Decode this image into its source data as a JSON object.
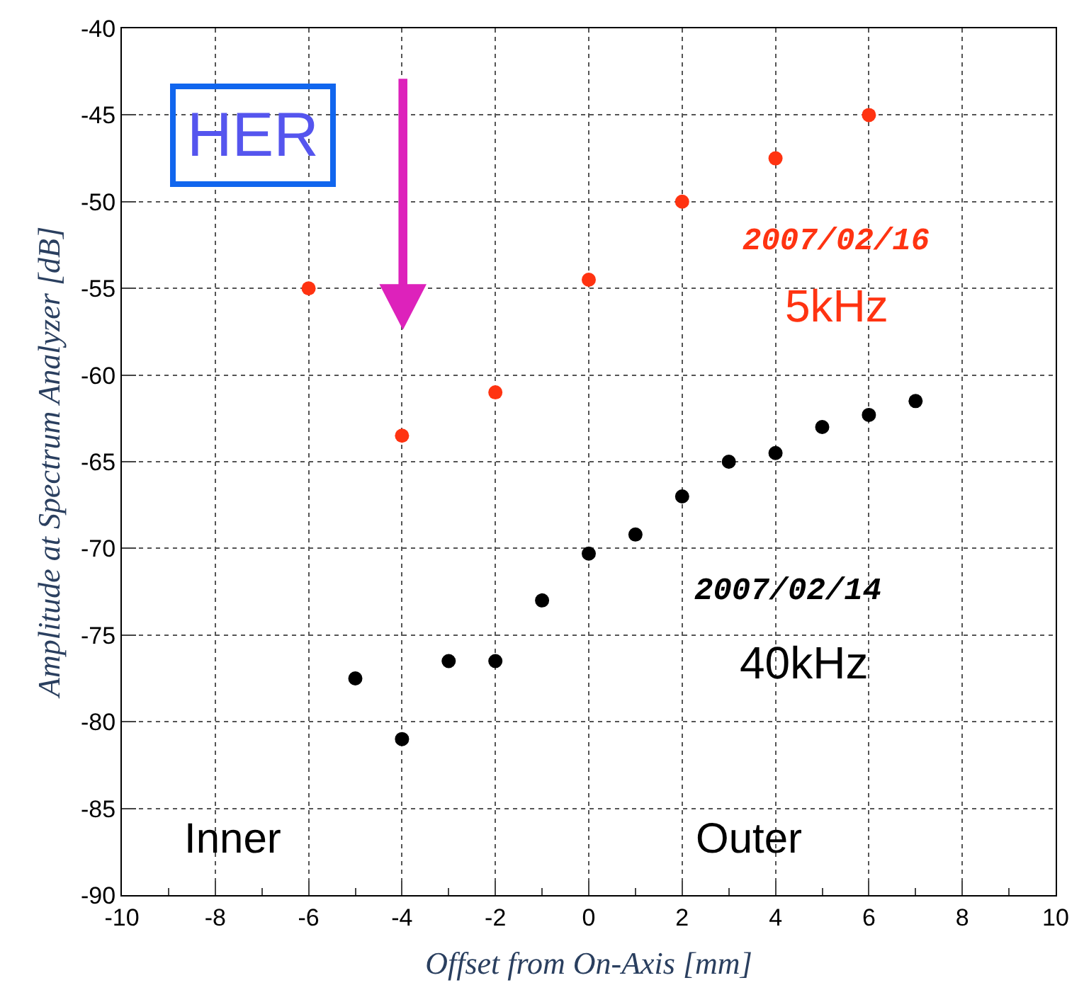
{
  "chart_data": {
    "type": "scatter",
    "xlabel": "Offset from On-Axis [mm]",
    "ylabel": "Amplitude at Spectrum Analyzer [dB]",
    "annotations": [
      "HER",
      "2007/02/16",
      "2007/02/14",
      "Inner",
      "Outer"
    ],
    "series": [
      {
        "name": "5kHz",
        "color": "#ff3311",
        "x": [
          -6,
          -4,
          -2,
          0,
          2,
          4,
          6
        ],
        "values": [
          -55,
          -63.5,
          -61,
          -54.5,
          -50,
          -47.5,
          -45
        ]
      },
      {
        "name": "40kHz",
        "color": "#000000",
        "x": [
          -5,
          -4,
          -3,
          -2,
          -1,
          0,
          1,
          2,
          3,
          4,
          5,
          6,
          7
        ],
        "values": [
          -77.5,
          -81,
          -76.5,
          -76.5,
          -73,
          -70.3,
          -69.2,
          -67,
          -65,
          -64.5,
          -63,
          -62.3,
          -61.5
        ]
      }
    ],
    "xlim": [
      -10,
      10
    ],
    "xticks": [
      -10,
      -8,
      -6,
      -4,
      -2,
      0,
      2,
      4,
      6,
      8,
      10
    ],
    "ylim": [
      -90,
      -40
    ],
    "yticks": [
      -90,
      -85,
      -80,
      -75,
      -70,
      -65,
      -60,
      -55,
      -50,
      -45,
      -40
    ],
    "grid": true,
    "legend": false,
    "marker": "circle"
  }
}
